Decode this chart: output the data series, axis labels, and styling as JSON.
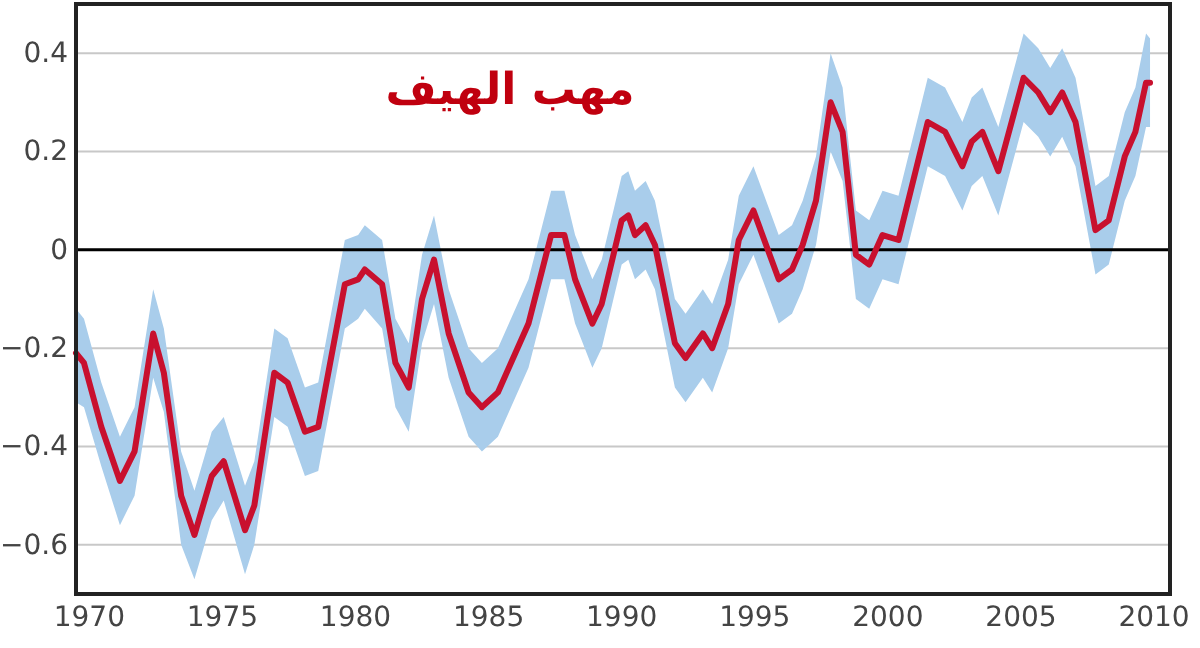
{
  "chart_data": {
    "type": "line",
    "title": "مهب الهيف",
    "xlim": [
      1969.5,
      2010.6
    ],
    "xticks": [
      1970,
      1975,
      1980,
      1985,
      1990,
      1995,
      2000,
      2005,
      2010
    ],
    "ylim": [
      -0.7,
      0.5
    ],
    "yticks": [
      -0.6,
      -0.4,
      -0.2,
      0,
      0.2,
      0.4
    ],
    "grid": "y",
    "marker": "none",
    "line_style": "solid",
    "ref_lines": [
      {
        "axis": "y",
        "value": 0,
        "color": "#000000"
      }
    ],
    "series": [
      {
        "color": "#c8102e",
        "x": [
          1969.5,
          1969.8,
          1970.45,
          1971.15,
          1971.7,
          1972.4,
          1972.8,
          1973.45,
          1973.95,
          1974.6,
          1975.05,
          1975.85,
          1976.2,
          1976.95,
          1977.45,
          1978.1,
          1978.6,
          1979.6,
          1980.1,
          1980.35,
          1981,
          1981.5,
          1982,
          1982.5,
          1982.95,
          1983.5,
          1984.25,
          1984.75,
          1985.35,
          1986.5,
          1987.35,
          1987.85,
          1988.25,
          1988.9,
          1989.25,
          1990,
          1990.25,
          1990.5,
          1990.9,
          1991.25,
          1992,
          1992.4,
          1993.05,
          1993.4,
          1994,
          1994.4,
          1994.95,
          1995.9,
          1996.4,
          1996.8,
          1997.3,
          1997.85,
          1998.3,
          1998.8,
          1999.3,
          1999.8,
          2000.4,
          2001.5,
          2002.15,
          2002.8,
          2003.15,
          2003.55,
          2004.15,
          2005.1,
          2005.65,
          2006.1,
          2006.55,
          2007.05,
          2007.8,
          2008.3,
          2008.9,
          2009.3,
          2009.7,
          2009.85
        ],
        "values": [
          -0.21,
          -0.23,
          -0.36,
          -0.47,
          -0.41,
          -0.17,
          -0.25,
          -0.5,
          -0.58,
          -0.46,
          -0.43,
          -0.57,
          -0.52,
          -0.25,
          -0.27,
          -0.37,
          -0.36,
          -0.07,
          -0.06,
          -0.04,
          -0.07,
          -0.23,
          -0.28,
          -0.1,
          -0.02,
          -0.17,
          -0.29,
          -0.32,
          -0.29,
          -0.15,
          0.03,
          0.03,
          -0.06,
          -0.15,
          -0.11,
          0.06,
          0.07,
          0.03,
          0.05,
          0.01,
          -0.19,
          -0.22,
          -0.17,
          -0.2,
          -0.11,
          0.02,
          0.08,
          -0.06,
          -0.04,
          0.01,
          0.1,
          0.3,
          0.24,
          -0.01,
          -0.03,
          0.03,
          0.02,
          0.26,
          0.24,
          0.17,
          0.22,
          0.24,
          0.16,
          0.35,
          0.32,
          0.28,
          0.32,
          0.26,
          0.04,
          0.06,
          0.19,
          0.24,
          0.34,
          0.34
        ],
        "lower": [
          -0.31,
          -0.32,
          -0.44,
          -0.56,
          -0.5,
          -0.26,
          -0.33,
          -0.6,
          -0.67,
          -0.55,
          -0.51,
          -0.66,
          -0.6,
          -0.34,
          -0.36,
          -0.46,
          -0.45,
          -0.16,
          -0.14,
          -0.12,
          -0.16,
          -0.32,
          -0.37,
          -0.19,
          -0.11,
          -0.26,
          -0.38,
          -0.41,
          -0.38,
          -0.24,
          -0.06,
          -0.06,
          -0.15,
          -0.24,
          -0.2,
          -0.03,
          -0.02,
          -0.06,
          -0.04,
          -0.08,
          -0.28,
          -0.31,
          -0.26,
          -0.29,
          -0.2,
          -0.07,
          -0.01,
          -0.15,
          -0.13,
          -0.08,
          0.01,
          0.2,
          0.14,
          -0.1,
          -0.12,
          -0.06,
          -0.07,
          0.17,
          0.15,
          0.08,
          0.13,
          0.15,
          0.07,
          0.26,
          0.23,
          0.19,
          0.23,
          0.17,
          -0.05,
          -0.03,
          0.1,
          0.15,
          0.25,
          0.25
        ],
        "upper": [
          -0.12,
          -0.14,
          -0.27,
          -0.38,
          -0.32,
          -0.08,
          -0.16,
          -0.41,
          -0.49,
          -0.37,
          -0.34,
          -0.48,
          -0.43,
          -0.16,
          -0.18,
          -0.28,
          -0.27,
          0.02,
          0.03,
          0.05,
          0.02,
          -0.14,
          -0.19,
          -0.01,
          0.07,
          -0.08,
          -0.2,
          -0.23,
          -0.2,
          -0.06,
          0.12,
          0.12,
          0.03,
          -0.06,
          -0.02,
          0.15,
          0.16,
          0.12,
          0.14,
          0.1,
          -0.1,
          -0.13,
          -0.08,
          -0.11,
          -0.02,
          0.11,
          0.17,
          0.03,
          0.05,
          0.1,
          0.19,
          0.4,
          0.33,
          0.08,
          0.06,
          0.12,
          0.11,
          0.35,
          0.33,
          0.26,
          0.31,
          0.33,
          0.25,
          0.44,
          0.41,
          0.37,
          0.41,
          0.35,
          0.13,
          0.15,
          0.28,
          0.33,
          0.44,
          0.43
        ]
      }
    ]
  }
}
